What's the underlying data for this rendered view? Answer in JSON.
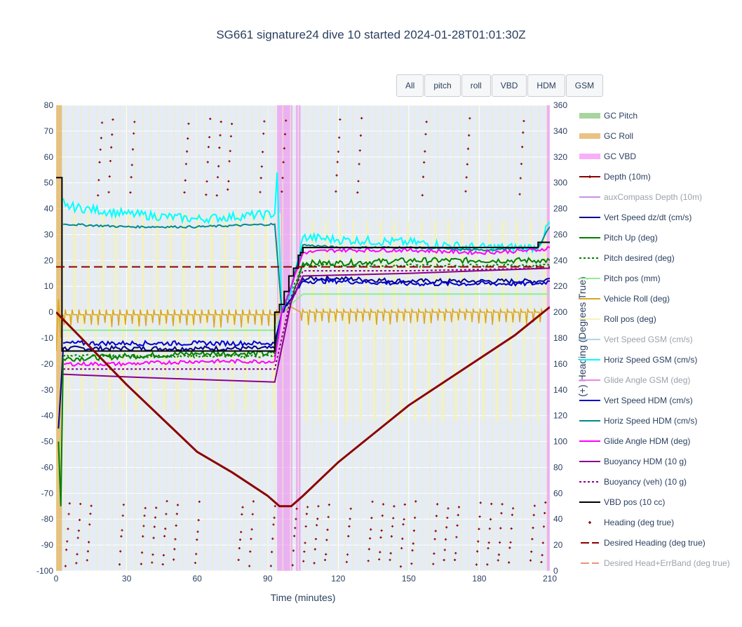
{
  "title": "SG661 signature24 dive 10 started 2024-01-28T01:01:30Z",
  "buttons": [
    "All",
    "pitch",
    "roll",
    "VBD",
    "HDM",
    "GSM"
  ],
  "chart_data": {
    "type": "line",
    "title": "SG661 signature24 dive 10 started 2024-01-28T01:01:30Z",
    "xlabel": "Time (minutes)",
    "ylabel_right": "(+) Heading (Degrees True)",
    "xlim": [
      0,
      210
    ],
    "ylim": [
      -100,
      80
    ],
    "y2lim": [
      0,
      360
    ],
    "xticks": [
      0,
      30,
      60,
      90,
      120,
      150,
      180,
      210
    ],
    "yticks": [
      -100,
      -90,
      -80,
      -70,
      -60,
      -50,
      -40,
      -30,
      -20,
      -10,
      0,
      10,
      20,
      30,
      40,
      50,
      60,
      70,
      80
    ],
    "y2ticks": [
      0,
      20,
      40,
      60,
      80,
      100,
      120,
      140,
      160,
      180,
      200,
      220,
      240,
      260,
      280,
      300,
      320,
      340,
      360
    ],
    "legend_position": "right",
    "shaded_regions": [
      {
        "name": "GC VBD",
        "color": "#ee82ee",
        "ranges": [
          [
            94,
            100.5
          ],
          [
            102,
            104
          ],
          [
            208.5,
            210
          ]
        ]
      },
      {
        "name": "GC Roll",
        "color": "#e6a020",
        "ranges": [
          [
            0,
            2.5
          ]
        ]
      }
    ],
    "series": [
      {
        "name": "GC Pitch",
        "color": "#a9d4a0",
        "style": "band",
        "visible": true
      },
      {
        "name": "GC Roll",
        "color": "#e9c384",
        "style": "band",
        "visible": true
      },
      {
        "name": "GC VBD",
        "color": "#f7b0f7",
        "style": "band",
        "visible": true
      },
      {
        "name": "Depth (10m)",
        "color": "#8b0000",
        "style": "line-marker",
        "visible": true,
        "x": [
          0,
          15,
          30,
          45,
          60,
          75,
          90,
          95,
          100,
          105,
          120,
          135,
          150,
          165,
          180,
          195,
          210
        ],
        "y": [
          0,
          -14,
          -28,
          -41,
          -54,
          -62,
          -71,
          -75,
          -75,
          -71,
          -58,
          -47,
          -36,
          -27,
          -18,
          -9,
          2
        ]
      },
      {
        "name": "auxCompass Depth (10m)",
        "color": "#c891e6",
        "style": "line",
        "visible": false
      },
      {
        "name": "Vert Speed dz/dt (cm/s)",
        "color": "#00008b",
        "style": "line",
        "visible": true,
        "x": [
          1,
          3,
          30,
          60,
          93,
          96,
          100,
          105,
          120,
          150,
          180,
          205,
          210
        ],
        "y": [
          -45,
          -14,
          -14,
          -14,
          -14,
          0,
          5,
          13,
          13,
          12,
          12,
          12,
          13
        ]
      },
      {
        "name": "Pitch Up (deg)",
        "color": "#008000",
        "style": "line",
        "visible": true,
        "x": [
          1,
          2,
          3,
          30,
          60,
          93,
          96,
          100,
          105,
          120,
          150,
          180,
          205,
          210
        ],
        "y": [
          -50,
          -75,
          -18,
          -17,
          -16,
          -16,
          0,
          5,
          19,
          19,
          20,
          20,
          20,
          20
        ]
      },
      {
        "name": "Pitch desired (deg)",
        "color": "#008000",
        "style": "dot",
        "visible": true,
        "x": [
          3,
          93,
          96,
          105,
          210
        ],
        "y": [
          -17,
          -17,
          0,
          18,
          18
        ]
      },
      {
        "name": "Pitch pos (mm)",
        "color": "#90ee90",
        "style": "line",
        "visible": true,
        "x": [
          3,
          93,
          96,
          105,
          210
        ],
        "y": [
          -7,
          -7,
          0,
          7,
          7
        ]
      },
      {
        "name": "Vehicle Roll (deg)",
        "color": "#daa520",
        "style": "line",
        "visible": true
      },
      {
        "name": "Roll pos (deg)",
        "color": "#f5f2b8",
        "style": "line",
        "visible": true
      },
      {
        "name": "Vert Speed GSM (cm/s)",
        "color": "#add8e6",
        "style": "line",
        "visible": false
      },
      {
        "name": "Horiz Speed GSM (cm/s)",
        "color": "#00ffff",
        "style": "line",
        "visible": true,
        "x": [
          3,
          4,
          30,
          60,
          93,
          94,
          96,
          100,
          105,
          120,
          150,
          180,
          205,
          210
        ],
        "y": [
          44,
          41,
          38,
          36,
          38,
          54,
          0,
          8,
          29,
          28,
          27,
          25,
          25,
          35
        ]
      },
      {
        "name": "Glide Angle GSM (deg)",
        "color": "#ee82ee",
        "style": "line",
        "visible": false
      },
      {
        "name": "Vert Speed HDM (cm/s)",
        "color": "#0000cd",
        "style": "line",
        "visible": true,
        "x": [
          3,
          30,
          60,
          93,
          96,
          100,
          105,
          120,
          150,
          180,
          205,
          210
        ],
        "y": [
          -12,
          -12,
          -12,
          -12,
          0,
          5,
          12,
          12,
          11,
          11,
          11,
          12
        ]
      },
      {
        "name": "Horiz Speed HDM (cm/s)",
        "color": "#008b8b",
        "style": "line",
        "visible": true,
        "x": [
          3,
          4,
          30,
          60,
          93,
          96,
          100,
          105,
          120,
          150,
          180,
          205,
          210
        ],
        "y": [
          34,
          34,
          33,
          33,
          34,
          0,
          10,
          26,
          25,
          25,
          24,
          25,
          33
        ]
      },
      {
        "name": "Glide Angle HDM (deg)",
        "color": "#ff00ff",
        "style": "line",
        "visible": true,
        "x": [
          3,
          30,
          60,
          93,
          96,
          100,
          105,
          120,
          150,
          180,
          205,
          210
        ],
        "y": [
          -20,
          -20,
          -19,
          -19,
          0,
          10,
          23,
          24,
          24,
          23,
          24,
          25
        ]
      },
      {
        "name": "Buoyancy HDM (10 g)",
        "color": "#8b008b",
        "style": "line",
        "visible": true,
        "x": [
          3,
          30,
          60,
          93,
          100,
          105,
          150,
          210
        ],
        "y": [
          -24,
          -25,
          -26,
          -27,
          4,
          14,
          15,
          17
        ]
      },
      {
        "name": "Buoyancy (veh) (10 g)",
        "color": "#8b008b",
        "style": "dot",
        "visible": true,
        "x": [
          3,
          30,
          60,
          93,
          100,
          105,
          150,
          210
        ],
        "y": [
          -22,
          -22,
          -22,
          -22,
          6,
          16,
          16,
          17
        ]
      },
      {
        "name": "VBD pos (10 cc)",
        "color": "#000000",
        "style": "step",
        "visible": true,
        "x": [
          0,
          2.5,
          2.5,
          93,
          93,
          95,
          97,
          99,
          101,
          103,
          104,
          105,
          150,
          205,
          205,
          210
        ],
        "y": [
          52,
          52,
          -15,
          -15,
          0,
          3,
          8,
          14,
          17,
          22,
          23,
          25,
          25,
          25,
          27,
          27
        ]
      },
      {
        "name": "Heading (deg true)",
        "color": "#8b0000",
        "style": "markers",
        "axis": "y2",
        "visible": true
      },
      {
        "name": "Desired Heading (deg true)",
        "color": "#8b0000",
        "style": "dash",
        "axis": "y2",
        "visible": true,
        "x": [
          0,
          210
        ],
        "y": [
          235,
          235
        ]
      },
      {
        "name": "Desired Head+ErrBand (deg true)",
        "color": "#e9967a",
        "style": "dash",
        "axis": "y2",
        "visible": false
      }
    ]
  }
}
